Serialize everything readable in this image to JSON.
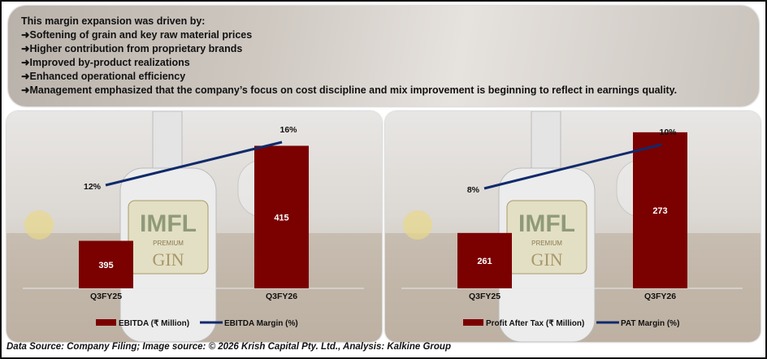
{
  "summary": {
    "heading": "This margin expansion was driven by:",
    "bullets": [
      "Softening of grain and key raw material prices",
      "Higher contribution from proprietary brands",
      "Improved by-product realizations",
      "Enhanced operational efficiency",
      "Management emphasized that the company’s focus on cost discipline and mix improvement is beginning to reflect in earnings quality."
    ],
    "bullet_icon": "right-arrow-icon"
  },
  "bottle_label": {
    "brand": "IMFL",
    "sub": "PREMIUM",
    "kind": "GIN"
  },
  "colors": {
    "bar": "#7b0000",
    "line": "#0f2a6b"
  },
  "chart_data": [
    {
      "type": "bar+line",
      "categories": [
        "Q3FY25",
        "Q3FY26"
      ],
      "series": [
        {
          "name": "EBITDA (₹ Million)",
          "type": "bar",
          "values": [
            395,
            415
          ],
          "labels": [
            "395",
            "415"
          ]
        },
        {
          "name": "EBITDA Margin (%)",
          "type": "line",
          "values": [
            12,
            16
          ],
          "labels": [
            "12%",
            "16%"
          ]
        }
      ],
      "legend": "bottom"
    },
    {
      "type": "bar+line",
      "categories": [
        "Q3FY25",
        "Q3FY26"
      ],
      "series": [
        {
          "name": "Profit After Tax (₹ Million)",
          "type": "bar",
          "values": [
            261,
            273
          ],
          "labels": [
            "261",
            "273"
          ]
        },
        {
          "name": "PAT Margin (%)",
          "type": "line",
          "values": [
            8,
            10
          ],
          "labels": [
            "8%",
            "10%"
          ]
        }
      ],
      "legend": "bottom"
    }
  ],
  "footer": "Data Source: Company Filing; Image source: © 2026 Krish Capital Pty. Ltd., Analysis: Kalkine Group"
}
